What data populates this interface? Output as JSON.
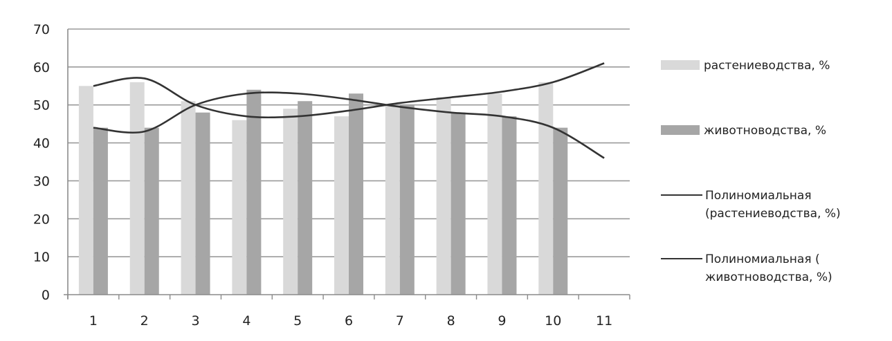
{
  "chart_data": {
    "type": "bar",
    "categories": [
      "1",
      "2",
      "3",
      "4",
      "5",
      "6",
      "7",
      "8",
      "9",
      "10",
      "11"
    ],
    "series": [
      {
        "name": "растениеводства, %",
        "kind": "bar",
        "values": [
          55,
          56,
          51,
          46,
          49,
          47,
          50,
          52,
          53,
          56,
          null
        ],
        "color": "#d9d9d9"
      },
      {
        "name": "животноводства, %",
        "kind": "bar",
        "values": [
          44,
          44,
          48,
          54,
          51,
          53,
          50,
          48,
          47,
          44,
          null
        ],
        "color": "#a6a6a6"
      },
      {
        "name": "Полиномиальная (растениеводства, %)",
        "kind": "trendline",
        "values": [
          55,
          57,
          50,
          47,
          47,
          48.5,
          50.5,
          52,
          53.5,
          56,
          61
        ],
        "color": "#333333"
      },
      {
        "name": "Полиномиальная ( животноводства, %)",
        "kind": "trendline",
        "values": [
          44,
          43,
          50,
          53,
          53,
          51.5,
          49.5,
          48,
          47,
          44,
          36
        ],
        "color": "#333333"
      }
    ],
    "yticks": [
      0,
      10,
      20,
      30,
      40,
      50,
      60,
      70
    ],
    "ylim": [
      0,
      70
    ],
    "grid": true,
    "legend": "right",
    "title": "",
    "xlabel": "",
    "ylabel": ""
  }
}
